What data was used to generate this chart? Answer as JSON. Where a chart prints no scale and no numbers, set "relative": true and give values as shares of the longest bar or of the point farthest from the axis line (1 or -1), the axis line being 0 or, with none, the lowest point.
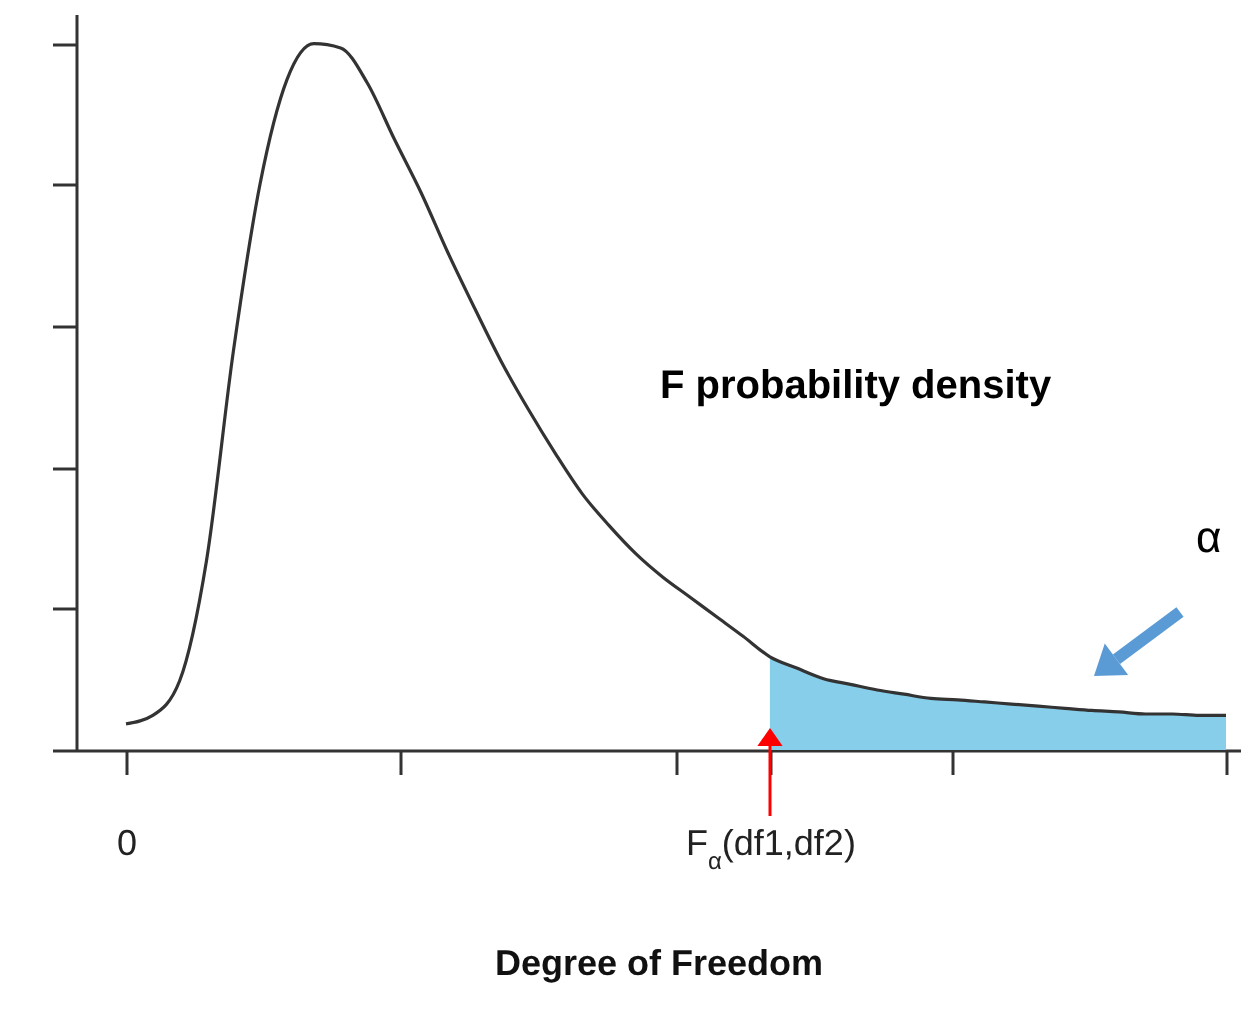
{
  "chart_data": {
    "type": "line",
    "relative": true,
    "xlabel": "Degree of Freedom",
    "categories": [
      "0",
      null,
      null,
      null,
      null,
      null,
      null,
      null,
      null,
      null,
      null,
      null,
      null,
      null,
      null,
      null,
      null,
      null,
      null,
      null,
      null,
      null,
      null,
      null,
      "F$_{α}$(df1,df2)",
      null,
      null,
      null,
      null,
      null,
      null,
      null,
      null,
      null,
      null,
      null,
      null,
      null,
      null,
      null,
      null,
      null
    ],
    "series": [
      {
        "type": "area",
        "color": "#87ceeb",
        "values": [
          null,
          null,
          null,
          null,
          null,
          null,
          null,
          null,
          null,
          null,
          null,
          null,
          null,
          null,
          null,
          null,
          null,
          null,
          null,
          null,
          null,
          null,
          null,
          null,
          0.132,
          0.116,
          0.101,
          0.093,
          0.085,
          0.079,
          0.073,
          0.071,
          0.068,
          0.065,
          0.062,
          0.059,
          0.056,
          0.054,
          0.051,
          0.051,
          0.049,
          0.049
        ]
      },
      {
        "color": "#333333",
        "values": [
          0.037,
          0.049,
          0.098,
          0.268,
          0.564,
          0.802,
          0.949,
          1.0,
          0.994,
          0.944,
          0.865,
          0.789,
          0.704,
          0.625,
          0.549,
          0.482,
          0.42,
          0.363,
          0.318,
          0.278,
          0.245,
          0.217,
          0.189,
          0.161,
          0.132,
          0.116,
          0.101,
          0.093,
          0.085,
          0.079,
          0.073,
          0.071,
          0.068,
          0.065,
          0.062,
          0.059,
          0.056,
          0.054,
          0.051,
          0.051,
          0.049,
          0.049
        ]
      }
    ],
    "annotations": [
      "F probability density",
      "α"
    ]
  }
}
